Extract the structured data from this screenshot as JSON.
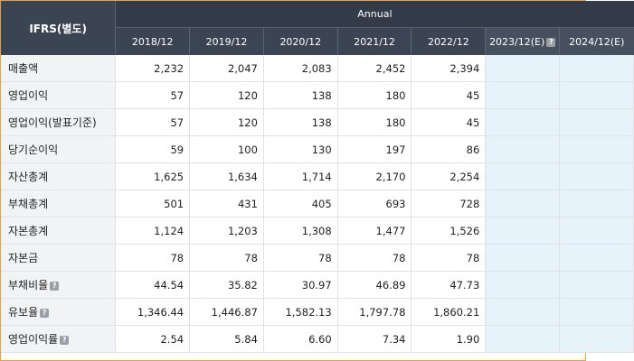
{
  "header": {
    "corner": "IFRS(별도)",
    "group": "Annual",
    "years": [
      "2018/12",
      "2019/12",
      "2020/12",
      "2021/12",
      "2022/12",
      "2023/12(E)",
      "2024/12(E)"
    ],
    "help_glyph": "?"
  },
  "rows": [
    {
      "label": "매출액",
      "values": [
        "2,232",
        "2,047",
        "2,083",
        "2,452",
        "2,394"
      ]
    },
    {
      "label": "영업이익",
      "values": [
        "57",
        "120",
        "138",
        "180",
        "45"
      ]
    },
    {
      "label": "영업이익(발표기준)",
      "values": [
        "57",
        "120",
        "138",
        "180",
        "45"
      ]
    },
    {
      "label": "당기순이익",
      "values": [
        "59",
        "100",
        "130",
        "197",
        "86"
      ]
    },
    {
      "label": "자산총계",
      "values": [
        "1,625",
        "1,634",
        "1,714",
        "2,170",
        "2,254"
      ]
    },
    {
      "label": "부채총계",
      "values": [
        "501",
        "431",
        "405",
        "693",
        "728"
      ]
    },
    {
      "label": "자본총계",
      "values": [
        "1,124",
        "1,203",
        "1,308",
        "1,477",
        "1,526"
      ]
    },
    {
      "label": "자본금",
      "values": [
        "78",
        "78",
        "78",
        "78",
        "78"
      ]
    },
    {
      "label": "부채비율",
      "values": [
        "44.54",
        "35.82",
        "30.97",
        "46.89",
        "47.73"
      ]
    },
    {
      "label": "유보율",
      "values": [
        "1,346.44",
        "1,446.87",
        "1,582.13",
        "1,797.78",
        "1,860.21"
      ]
    },
    {
      "label": "영업이익률",
      "values": [
        "2.54",
        "5.84",
        "6.60",
        "7.34",
        "1.90"
      ]
    }
  ],
  "colors": {
    "header_bg": "#3a4452",
    "label_bg": "#f2f3f5",
    "projection_bg": "#e6f3fa",
    "border_accent": "#f0a030"
  },
  "icons": {
    "help": "help-icon"
  }
}
